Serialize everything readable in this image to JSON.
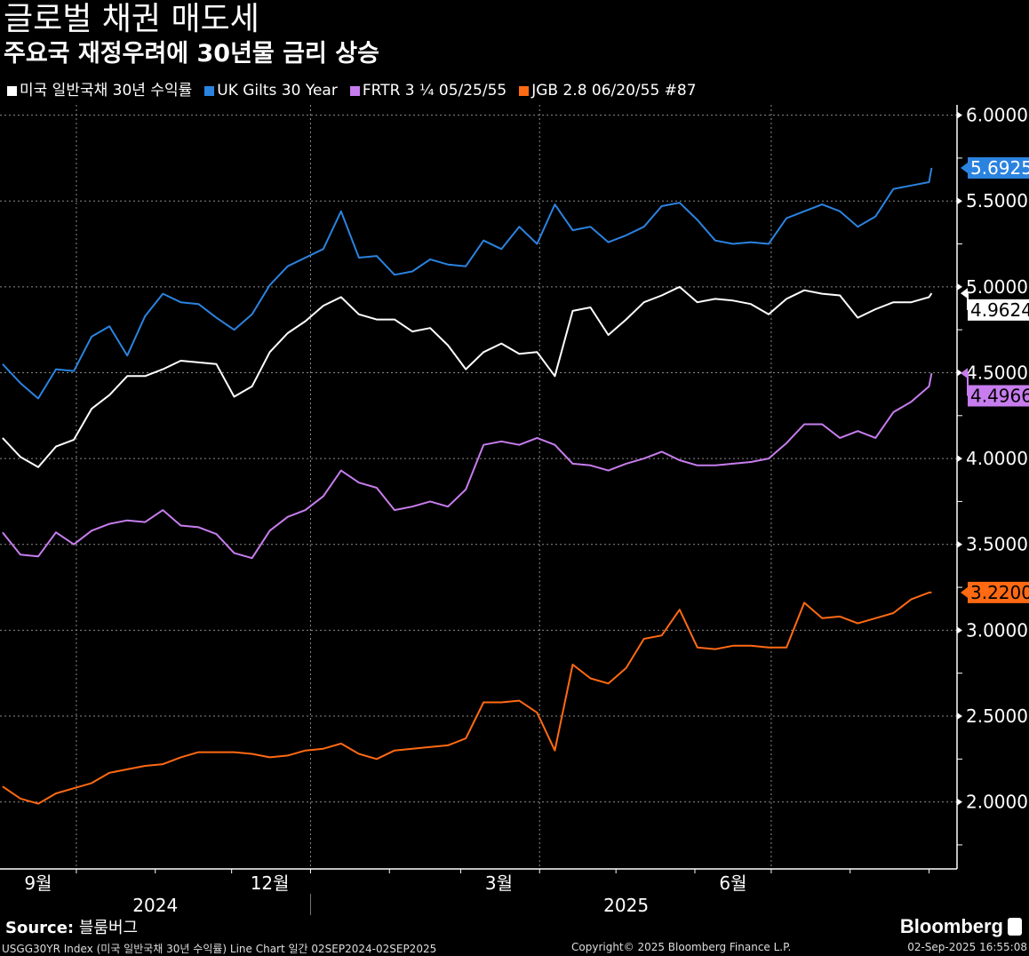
{
  "header": {
    "title": "글로벌 채권 매도세",
    "subtitle": "주요국 재정우려에 30년물 금리 상승"
  },
  "source": {
    "label": "Source:",
    "value": "블룸버그"
  },
  "footer": {
    "left": "USGG30YR Index (미국 일반국채 30년 수익률) Line Chart 일간 02SEP2024-02SEP2025",
    "middle": "Copyright© 2025 Bloomberg Finance L.P.",
    "right": "02-Sep-2025 16:55:08",
    "logo": "Bloomberg"
  },
  "chart_data": {
    "type": "line",
    "title": "글로벌 채권 매도세",
    "subtitle": "주요국 재정우려에 30년물 금리 상승",
    "xlim": [
      "2024-09-01",
      "2025-09-12"
    ],
    "ylim": [
      1.61,
      6.06
    ],
    "grid": true,
    "legend_position": "top-left",
    "y_ticks": [
      "6.0000",
      "5.5000",
      "5.0000",
      "4.5000",
      "4.0000",
      "3.5000",
      "3.0000",
      "2.5000",
      "2.0000"
    ],
    "y_tick_values": [
      6.0,
      5.5,
      5.0,
      4.5,
      4.0,
      3.5,
      3.0,
      2.5,
      2.0
    ],
    "x_month_labels": [
      {
        "label": "9월",
        "date": "2024-09-16"
      },
      {
        "label": "12월",
        "date": "2024-12-16"
      },
      {
        "label": "3월",
        "date": "2025-03-16"
      },
      {
        "label": "6월",
        "date": "2025-06-16"
      }
    ],
    "x_year_labels": [
      {
        "label": "2024",
        "date": "2024-11-01"
      },
      {
        "label": "2025",
        "date": "2025-05-05"
      }
    ],
    "x_gridlines": [
      "2024-10-01",
      "2025-01-01",
      "2025-04-01",
      "2025-07-01"
    ],
    "x": [
      "2024-09-02",
      "2024-09-09",
      "2024-09-16",
      "2024-09-23",
      "2024-09-30",
      "2024-10-07",
      "2024-10-14",
      "2024-10-21",
      "2024-10-28",
      "2024-11-04",
      "2024-11-11",
      "2024-11-18",
      "2024-11-25",
      "2024-12-02",
      "2024-12-09",
      "2024-12-16",
      "2024-12-23",
      "2024-12-30",
      "2025-01-06",
      "2025-01-13",
      "2025-01-20",
      "2025-01-27",
      "2025-02-03",
      "2025-02-10",
      "2025-02-17",
      "2025-02-24",
      "2025-03-03",
      "2025-03-10",
      "2025-03-17",
      "2025-03-24",
      "2025-03-31",
      "2025-04-07",
      "2025-04-14",
      "2025-04-21",
      "2025-04-28",
      "2025-05-05",
      "2025-05-12",
      "2025-05-19",
      "2025-05-26",
      "2025-06-02",
      "2025-06-09",
      "2025-06-16",
      "2025-06-23",
      "2025-06-30",
      "2025-07-07",
      "2025-07-14",
      "2025-07-21",
      "2025-07-28",
      "2025-08-04",
      "2025-08-11",
      "2025-08-18",
      "2025-08-25",
      "2025-09-01",
      "2025-09-02"
    ],
    "series": [
      {
        "name": "미국 일반국채 30년 수익률",
        "color": "#ffffff",
        "label_text_color": "#000000",
        "last_label": "4.9624",
        "values": [
          4.12,
          4.01,
          3.95,
          4.07,
          4.11,
          4.29,
          4.37,
          4.48,
          4.48,
          4.52,
          4.57,
          4.56,
          4.55,
          4.36,
          4.42,
          4.62,
          4.73,
          4.8,
          4.89,
          4.94,
          4.84,
          4.81,
          4.81,
          4.74,
          4.76,
          4.66,
          4.52,
          4.62,
          4.67,
          4.61,
          4.62,
          4.48,
          4.86,
          4.88,
          4.72,
          4.81,
          4.91,
          4.95,
          5.0,
          4.91,
          4.93,
          4.92,
          4.9,
          4.84,
          4.93,
          4.98,
          4.96,
          4.95,
          4.82,
          4.87,
          4.91,
          4.91,
          4.94,
          4.9624
        ]
      },
      {
        "name": "UK Gilts 30 Year",
        "color": "#2b83e0",
        "label_text_color": "#ffffff",
        "last_label": "5.6925",
        "values": [
          4.55,
          4.44,
          4.35,
          4.52,
          4.51,
          4.71,
          4.77,
          4.6,
          4.83,
          4.96,
          4.91,
          4.9,
          4.82,
          4.75,
          4.84,
          5.01,
          5.12,
          5.17,
          5.22,
          5.44,
          5.17,
          5.18,
          5.07,
          5.09,
          5.16,
          5.13,
          5.12,
          5.27,
          5.22,
          5.35,
          5.25,
          5.48,
          5.33,
          5.35,
          5.26,
          5.3,
          5.35,
          5.47,
          5.49,
          5.39,
          5.27,
          5.25,
          5.26,
          5.25,
          5.4,
          5.44,
          5.48,
          5.44,
          5.35,
          5.41,
          5.57,
          5.59,
          5.61,
          5.6925
        ]
      },
      {
        "name": "FRTR 3 ¼ 05/25/55",
        "color": "#c77dee",
        "label_text_color": "#000000",
        "last_label": "4.4966",
        "values": [
          3.57,
          3.44,
          3.43,
          3.57,
          3.5,
          3.58,
          3.62,
          3.64,
          3.63,
          3.7,
          3.61,
          3.6,
          3.56,
          3.45,
          3.42,
          3.58,
          3.66,
          3.7,
          3.78,
          3.93,
          3.86,
          3.83,
          3.7,
          3.72,
          3.75,
          3.72,
          3.82,
          4.08,
          4.1,
          4.08,
          4.12,
          4.08,
          3.97,
          3.96,
          3.93,
          3.97,
          4.0,
          4.04,
          3.99,
          3.96,
          3.96,
          3.97,
          3.98,
          4.0,
          4.09,
          4.2,
          4.2,
          4.12,
          4.16,
          4.12,
          4.27,
          4.33,
          4.42,
          4.4966
        ]
      },
      {
        "name": "JGB 2.8 06/20/55 #87",
        "color": "#ff6a13",
        "label_text_color": "#000000",
        "last_label": "3.2200",
        "values": [
          2.09,
          2.02,
          1.99,
          2.05,
          2.08,
          2.11,
          2.17,
          2.19,
          2.21,
          2.22,
          2.26,
          2.29,
          2.29,
          2.29,
          2.28,
          2.26,
          2.27,
          2.3,
          2.31,
          2.34,
          2.28,
          2.25,
          2.3,
          2.31,
          2.32,
          2.33,
          2.37,
          2.58,
          2.58,
          2.59,
          2.52,
          2.3,
          2.8,
          2.72,
          2.69,
          2.78,
          2.95,
          2.97,
          3.12,
          2.9,
          2.89,
          2.91,
          2.91,
          2.9,
          2.9,
          3.16,
          3.07,
          3.08,
          3.04,
          3.07,
          3.1,
          3.18,
          3.22,
          3.22
        ]
      }
    ]
  }
}
